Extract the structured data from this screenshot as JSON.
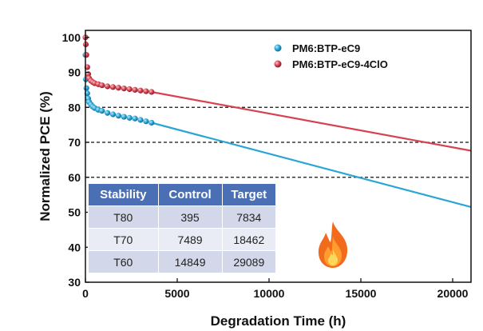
{
  "chart_data": {
    "type": "scatter",
    "xlabel": "Degradation Time (h)",
    "ylabel": "Normalized PCE (%)",
    "xlim": [
      0,
      21000
    ],
    "ylim": [
      30,
      102
    ],
    "xticks": [
      0,
      5000,
      10000,
      15000,
      20000
    ],
    "yticks": [
      30,
      40,
      50,
      60,
      70,
      80,
      90,
      100
    ],
    "reference_lines": [
      80,
      70,
      60
    ],
    "legend_position": "top-right",
    "series": [
      {
        "name": "PM6:BTP-eC9",
        "color": "#2aa6d6",
        "points": [
          [
            0,
            95
          ],
          [
            20,
            88
          ],
          [
            50,
            85.5
          ],
          [
            100,
            84
          ],
          [
            150,
            82.5
          ],
          [
            200,
            81.5
          ],
          [
            300,
            80.8
          ],
          [
            400,
            80.2
          ],
          [
            500,
            79.8
          ],
          [
            700,
            79.3
          ],
          [
            900,
            79
          ],
          [
            1200,
            78.4
          ],
          [
            1500,
            78
          ],
          [
            1800,
            77.6
          ],
          [
            2100,
            77.3
          ],
          [
            2400,
            77
          ],
          [
            2700,
            76.8
          ],
          [
            3000,
            76.4
          ],
          [
            3300,
            76
          ],
          [
            3600,
            75.6
          ]
        ],
        "fit_line": [
          [
            3600,
            75.6
          ],
          [
            21000,
            51.5
          ]
        ]
      },
      {
        "name": "PM6:BTP-eC9-4ClO",
        "color": "#d64250",
        "points": [
          [
            0,
            100
          ],
          [
            20,
            98
          ],
          [
            50,
            95
          ],
          [
            100,
            91.5
          ],
          [
            150,
            89.5
          ],
          [
            200,
            88.3
          ],
          [
            300,
            87.6
          ],
          [
            400,
            87.2
          ],
          [
            500,
            86.9
          ],
          [
            700,
            86.6
          ],
          [
            900,
            86.3
          ],
          [
            1200,
            86
          ],
          [
            1500,
            85.8
          ],
          [
            1800,
            85.6
          ],
          [
            2100,
            85.4
          ],
          [
            2400,
            85.2
          ],
          [
            2700,
            85
          ],
          [
            3000,
            84.8
          ],
          [
            3300,
            84.6
          ],
          [
            3600,
            84.4
          ]
        ],
        "fit_line": [
          [
            3600,
            84.4
          ],
          [
            21000,
            67.6
          ]
        ]
      }
    ]
  },
  "table": {
    "headers": [
      "Stability",
      "Control",
      "Target"
    ],
    "rows": [
      [
        "T80",
        "395",
        "7834"
      ],
      [
        "T70",
        "7489",
        "18462"
      ],
      [
        "T60",
        "14849",
        "29089"
      ]
    ]
  },
  "decoration": {
    "icon": "fire-icon"
  }
}
